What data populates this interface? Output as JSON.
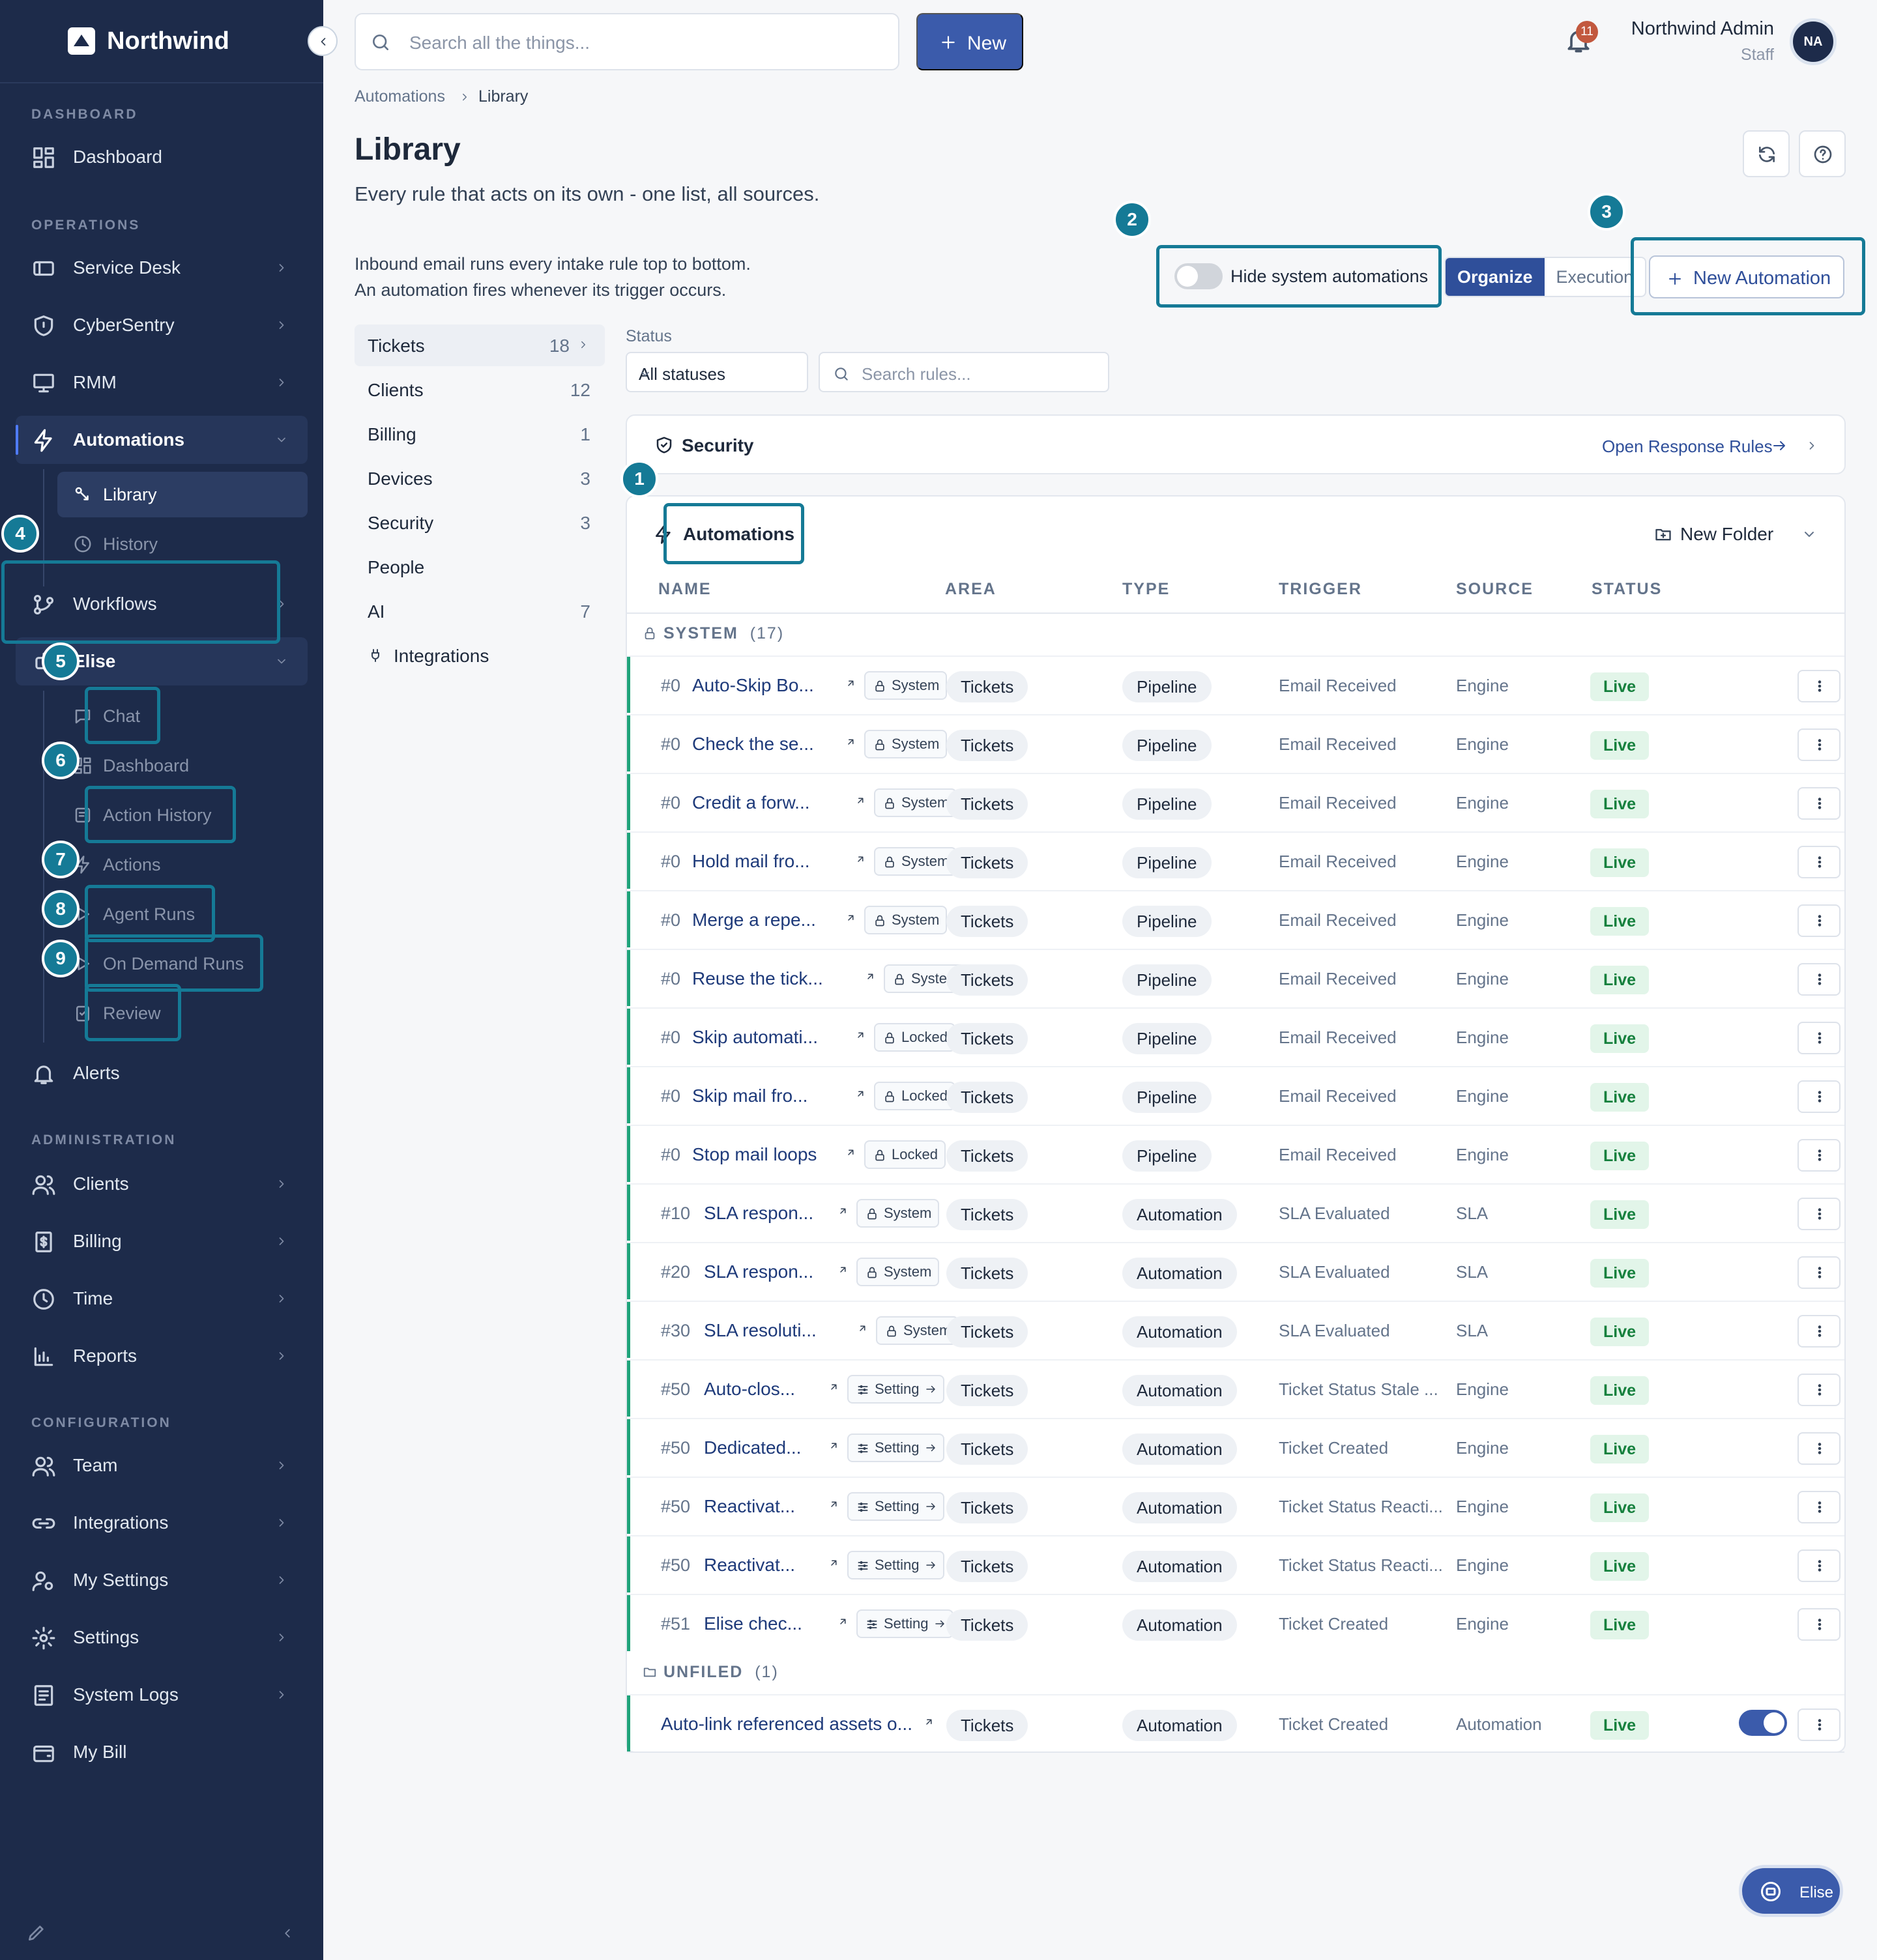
{
  "app": {
    "brand": "Northwind"
  },
  "sidebar": {
    "sections": [
      "DASHBOARD",
      "OPERATIONS",
      "ADMINISTRATION",
      "CONFIGURATION"
    ],
    "dashboard": "Dashboard",
    "operations": [
      "Service Desk",
      "CyberSentry",
      "RMM",
      "Automations"
    ],
    "automations_sub": [
      "Library",
      "History",
      "Workflows"
    ],
    "elise": "Elise",
    "elise_sub": [
      "Chat",
      "Dashboard",
      "Action History",
      "Actions",
      "Agent Runs",
      "On Demand Runs",
      "Review"
    ],
    "alerts": "Alerts",
    "administration": [
      "Clients",
      "Billing",
      "Time",
      "Reports"
    ],
    "configuration": [
      "Team",
      "Integrations",
      "My Settings",
      "Settings",
      "System Logs",
      "My Bill"
    ]
  },
  "header": {
    "search_placeholder": "Search all the things...",
    "new_label": "New",
    "notification_count": "11",
    "user_name": "Northwind Admin",
    "user_role": "Staff",
    "avatar_initials": "NA"
  },
  "breadcrumb": [
    "Automations",
    "Library"
  ],
  "page": {
    "title": "Library",
    "subtitle": "Every rule that acts on its own - one list, all sources.",
    "info_lines": [
      "Inbound email runs every intake rule top to bottom.",
      "An automation fires whenever its trigger occurs."
    ]
  },
  "controls": {
    "hide_system_label": "Hide system automations",
    "hide_system_on": false,
    "segments": [
      "Organize",
      "Execution"
    ],
    "active_segment": "Organize",
    "new_automation": "New Automation"
  },
  "categories": [
    {
      "label": "Tickets",
      "count": "18"
    },
    {
      "label": "Clients",
      "count": "12"
    },
    {
      "label": "Billing",
      "count": "1"
    },
    {
      "label": "Devices",
      "count": "3"
    },
    {
      "label": "Security",
      "count": "3"
    },
    {
      "label": "People",
      "count": ""
    },
    {
      "label": "AI",
      "count": "7"
    },
    {
      "label": "Integrations",
      "count": ""
    }
  ],
  "filters": {
    "status_label": "Status",
    "status_value": "All statuses",
    "search_placeholder": "Search rules..."
  },
  "security_card": {
    "title": "Security",
    "link": "Open Response Rules"
  },
  "automations_card": {
    "title": "Automations",
    "new_folder": "New Folder",
    "columns": [
      "NAME",
      "AREA",
      "TYPE",
      "TRIGGER",
      "SOURCE",
      "STATUS"
    ],
    "group_system": {
      "label": "SYSTEM",
      "count": "(17)"
    },
    "group_unfiled": {
      "label": "UNFILED",
      "count": "(1)"
    }
  },
  "rows": [
    {
      "num": "#0",
      "name": "Auto-Skip Bo...",
      "tag": "System",
      "area": "Tickets",
      "type": "Pipeline",
      "trigger": "Email Received",
      "source": "Engine",
      "status": "Live"
    },
    {
      "num": "#0",
      "name": "Check the se...",
      "tag": "System",
      "area": "Tickets",
      "type": "Pipeline",
      "trigger": "Email Received",
      "source": "Engine",
      "status": "Live"
    },
    {
      "num": "#0",
      "name": "Credit a forw...",
      "tag": "System",
      "area": "Tickets",
      "type": "Pipeline",
      "trigger": "Email Received",
      "source": "Engine",
      "status": "Live"
    },
    {
      "num": "#0",
      "name": "Hold mail fro...",
      "tag": "System",
      "area": "Tickets",
      "type": "Pipeline",
      "trigger": "Email Received",
      "source": "Engine",
      "status": "Live"
    },
    {
      "num": "#0",
      "name": "Merge a repe...",
      "tag": "System",
      "area": "Tickets",
      "type": "Pipeline",
      "trigger": "Email Received",
      "source": "Engine",
      "status": "Live"
    },
    {
      "num": "#0",
      "name": "Reuse the tick...",
      "tag": "System",
      "area": "Tickets",
      "type": "Pipeline",
      "trigger": "Email Received",
      "source": "Engine",
      "status": "Live"
    },
    {
      "num": "#0",
      "name": "Skip automati...",
      "tag": "Locked",
      "area": "Tickets",
      "type": "Pipeline",
      "trigger": "Email Received",
      "source": "Engine",
      "status": "Live"
    },
    {
      "num": "#0",
      "name": "Skip mail fro...",
      "tag": "Locked",
      "area": "Tickets",
      "type": "Pipeline",
      "trigger": "Email Received",
      "source": "Engine",
      "status": "Live"
    },
    {
      "num": "#0",
      "name": "Stop mail loops",
      "tag": "Locked",
      "area": "Tickets",
      "type": "Pipeline",
      "trigger": "Email Received",
      "source": "Engine",
      "status": "Live"
    },
    {
      "num": "#10",
      "name": "SLA respon...",
      "tag": "System",
      "area": "Tickets",
      "type": "Automation",
      "trigger": "SLA Evaluated",
      "source": "SLA",
      "status": "Live"
    },
    {
      "num": "#20",
      "name": "SLA respon...",
      "tag": "System",
      "area": "Tickets",
      "type": "Automation",
      "trigger": "SLA Evaluated",
      "source": "SLA",
      "status": "Live"
    },
    {
      "num": "#30",
      "name": "SLA resoluti...",
      "tag": "System",
      "area": "Tickets",
      "type": "Automation",
      "trigger": "SLA Evaluated",
      "source": "SLA",
      "status": "Live"
    },
    {
      "num": "#50",
      "name": "Auto-clos...",
      "tag": "Setting",
      "area": "Tickets",
      "type": "Automation",
      "trigger": "Ticket Status Stale ...",
      "source": "Engine",
      "status": "Live"
    },
    {
      "num": "#50",
      "name": "Dedicated...",
      "tag": "Setting",
      "area": "Tickets",
      "type": "Automation",
      "trigger": "Ticket Created",
      "source": "Engine",
      "status": "Live"
    },
    {
      "num": "#50",
      "name": "Reactivat...",
      "tag": "Setting",
      "area": "Tickets",
      "type": "Automation",
      "trigger": "Ticket Status Reacti...",
      "source": "Engine",
      "status": "Live"
    },
    {
      "num": "#50",
      "name": "Reactivat...",
      "tag": "Setting",
      "area": "Tickets",
      "type": "Automation",
      "trigger": "Ticket Status Reacti...",
      "source": "Engine",
      "status": "Live"
    },
    {
      "num": "#51",
      "name": "Elise chec...",
      "tag": "Setting",
      "area": "Tickets",
      "type": "Automation",
      "trigger": "Ticket Created",
      "source": "Engine",
      "status": "Live"
    }
  ],
  "unfiled_row": {
    "name": "Auto-link referenced assets o...",
    "area": "Tickets",
    "type": "Automation",
    "trigger": "Ticket Created",
    "source": "Automation",
    "status": "Live",
    "enabled": true
  },
  "annotations": [
    "1",
    "2",
    "3",
    "4",
    "5",
    "6",
    "7",
    "8",
    "9"
  ],
  "fab": {
    "label": "Elise"
  },
  "colors": {
    "sidebar": "#1d2b4a",
    "primary": "#3b5bab",
    "highlight": "#157a96",
    "live_bg": "#e2f5e9",
    "live_text": "#15803d",
    "row_accent": "#1fa37a"
  }
}
